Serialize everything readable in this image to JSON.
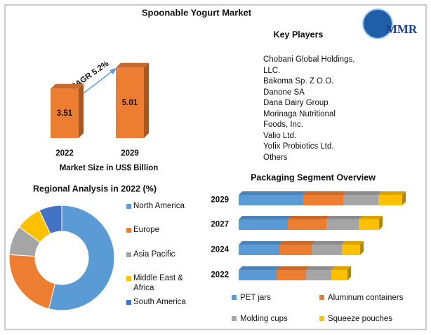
{
  "title": "Spoonable Yogurt Market",
  "logo": {
    "text": "MMR"
  },
  "market_size": {
    "type": "bar",
    "categories": [
      "2022",
      "2029"
    ],
    "values": [
      3.51,
      5.01
    ],
    "color": "#ed7d31",
    "annotation": "CAGR 5.2%",
    "xlabel": "Market Size in US$ Billion"
  },
  "key_players": {
    "title": "Key Players",
    "items": [
      "Chobani Global Holdings, LLC.",
      "Bakoma Sp. Z O.O.",
      "Danone SA",
      "Dana Dairy Group",
      "Morinaga Nutritional Foods, Inc.",
      "Valio Ltd.",
      "Yofix Probiotics Ltd.",
      "Others"
    ]
  },
  "chart_data": [
    {
      "type": "donut",
      "title": "Regional Analysis in 2022 (%)",
      "categories": [
        "North America",
        "Europe",
        "Asia Pacific",
        "Middle East & Africa",
        "South America"
      ],
      "values": [
        54,
        22,
        9,
        8,
        7
      ],
      "colors": [
        "#5b9bd5",
        "#ed7d31",
        "#a5a5a5",
        "#ffc000",
        "#4472c4"
      ]
    },
    {
      "type": "stacked-bar-horizontal",
      "title": "Packaging Segment Overview",
      "categories": [
        "2029",
        "2027",
        "2024",
        "2022"
      ],
      "series": [
        {
          "name": "PET jars",
          "color": "#5b9bd5",
          "values": [
            91,
            70,
            58,
            54
          ]
        },
        {
          "name": "Aluminum containers",
          "color": "#ed7d31",
          "values": [
            58,
            55,
            46,
            42
          ]
        },
        {
          "name": "Molding cups",
          "color": "#a5a5a5",
          "values": [
            50,
            46,
            43,
            36
          ]
        },
        {
          "name": "Squeeze pouches",
          "color": "#ffc000",
          "values": [
            34,
            29,
            26,
            23
          ]
        }
      ]
    }
  ]
}
